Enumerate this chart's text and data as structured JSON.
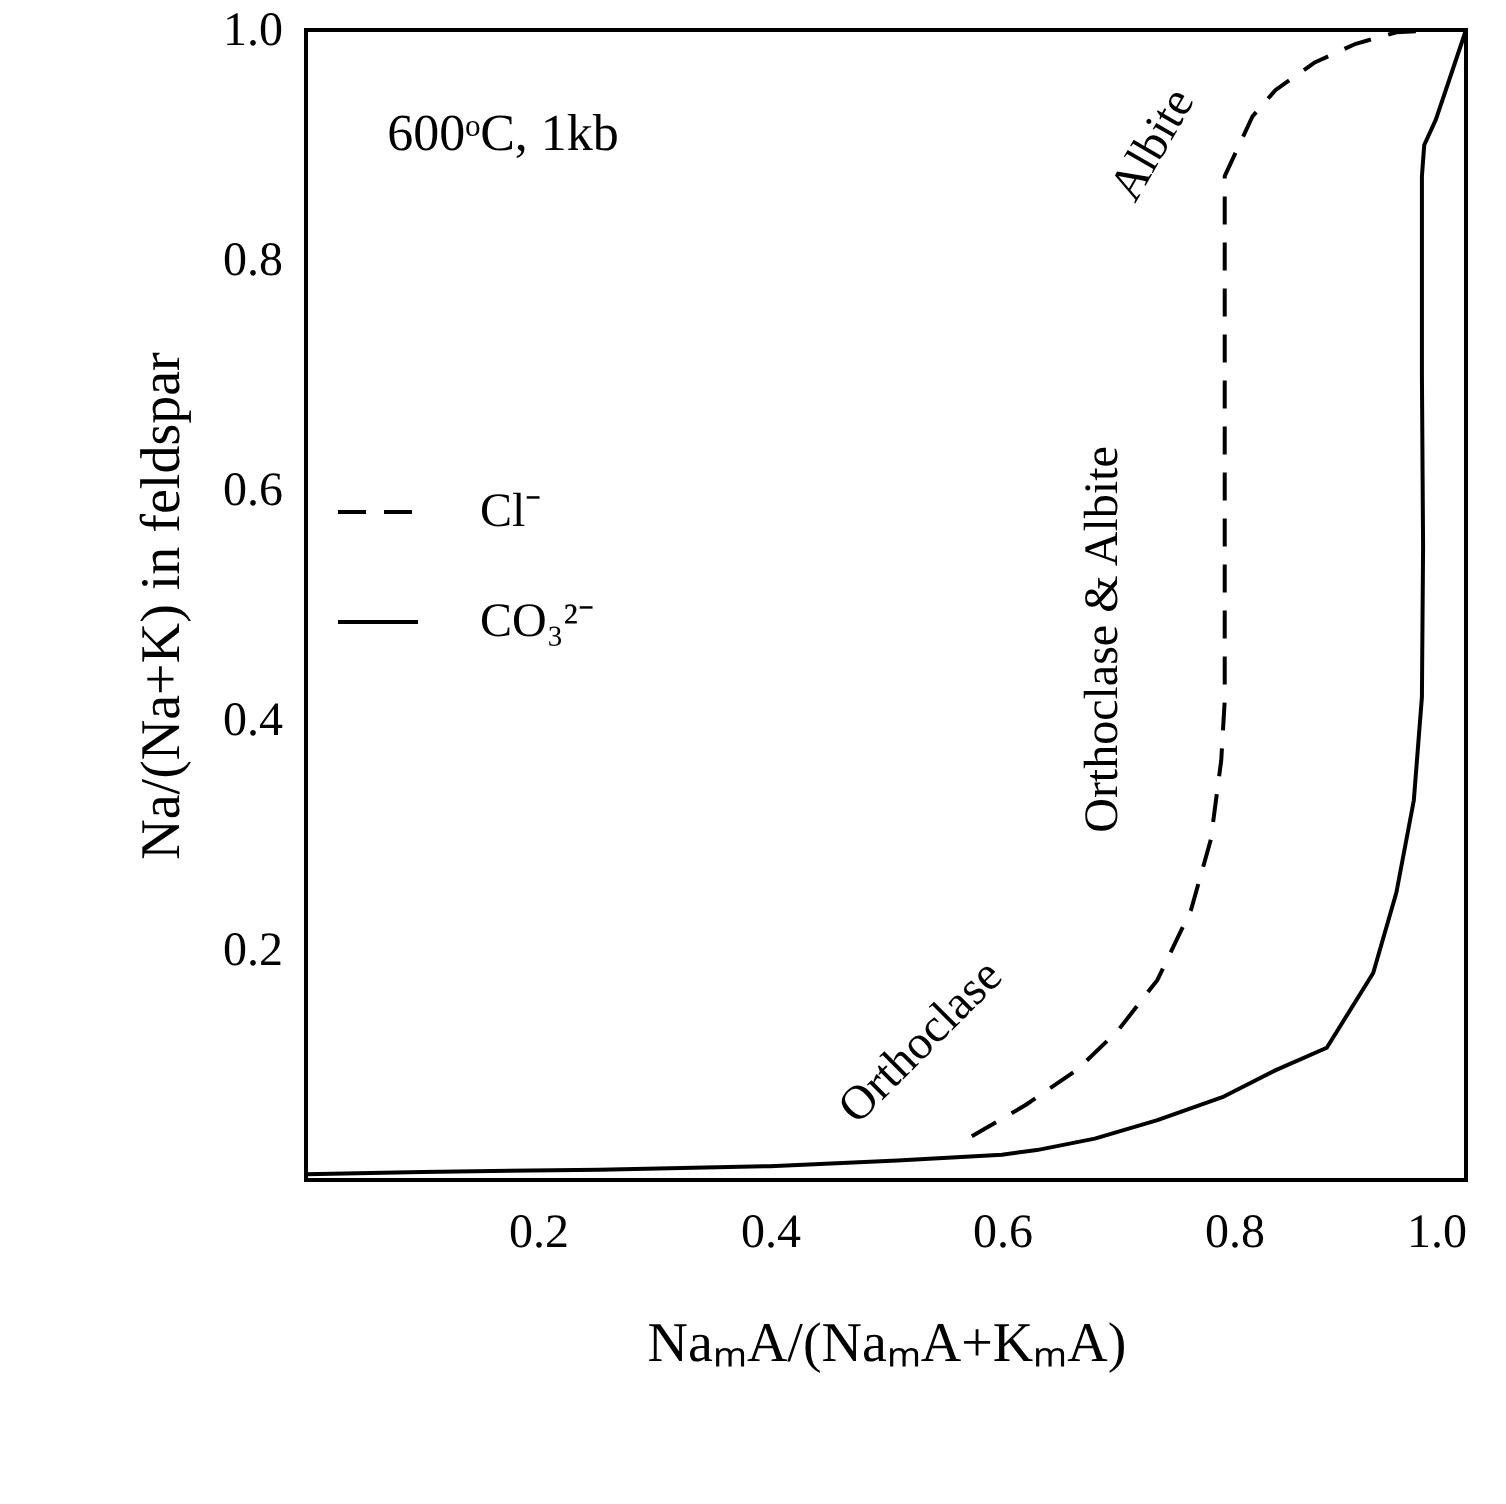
{
  "chart_data": {
    "type": "line",
    "xlabel": "NaₘA/(NaₘA+KₘA)",
    "ylabel": "Na/(Na+K) in feldspar",
    "xlim": [
      0,
      1
    ],
    "ylim": [
      0,
      1
    ],
    "xticks": [
      0.2,
      0.4,
      0.6,
      0.8,
      {
        "value": 1.0,
        "label": "1.0"
      }
    ],
    "yticks": [
      0.2,
      0.4,
      0.6,
      0.8,
      {
        "value": 1.0,
        "label": "1.0"
      }
    ],
    "grid": false,
    "legend": "left",
    "marker": "none",
    "annotations": [
      "600ᵒC, 1kb",
      "Orthoclase",
      "Orthoclase & Albite",
      "Albite"
    ],
    "series": [
      {
        "name": "Cl⁻",
        "color": "#000000",
        "line_style": "dashed",
        "x": [
          0.574,
          0.62,
          0.665,
          0.7,
          0.734,
          0.763,
          0.78,
          0.789,
          0.792,
          0.792,
          0.792,
          0.816,
          0.836,
          0.87,
          0.905,
          0.94,
          0.974,
          1.0
        ],
        "values": [
          0.038,
          0.065,
          0.096,
          0.13,
          0.174,
          0.235,
          0.296,
          0.365,
          0.417,
          0.6,
          0.873,
          0.925,
          0.948,
          0.972,
          0.988,
          0.998,
          1.0,
          1.0
        ]
      },
      {
        "name": "CO₃²⁻",
        "color": "#000000",
        "line_style": "solid",
        "x": [
          0.0,
          0.1,
          0.253,
          0.4,
          0.51,
          0.6,
          0.63,
          0.68,
          0.734,
          0.79,
          0.837,
          0.88,
          0.92,
          0.94,
          0.955,
          0.962,
          0.963,
          0.962,
          0.962,
          0.964,
          0.974,
          0.99,
          1.0
        ],
        "values": [
          0.005,
          0.007,
          0.009,
          0.012,
          0.017,
          0.022,
          0.026,
          0.036,
          0.052,
          0.072,
          0.096,
          0.115,
          0.18,
          0.25,
          0.33,
          0.42,
          0.55,
          0.7,
          0.873,
          0.9,
          0.922,
          0.97,
          1.0
        ]
      }
    ]
  }
}
